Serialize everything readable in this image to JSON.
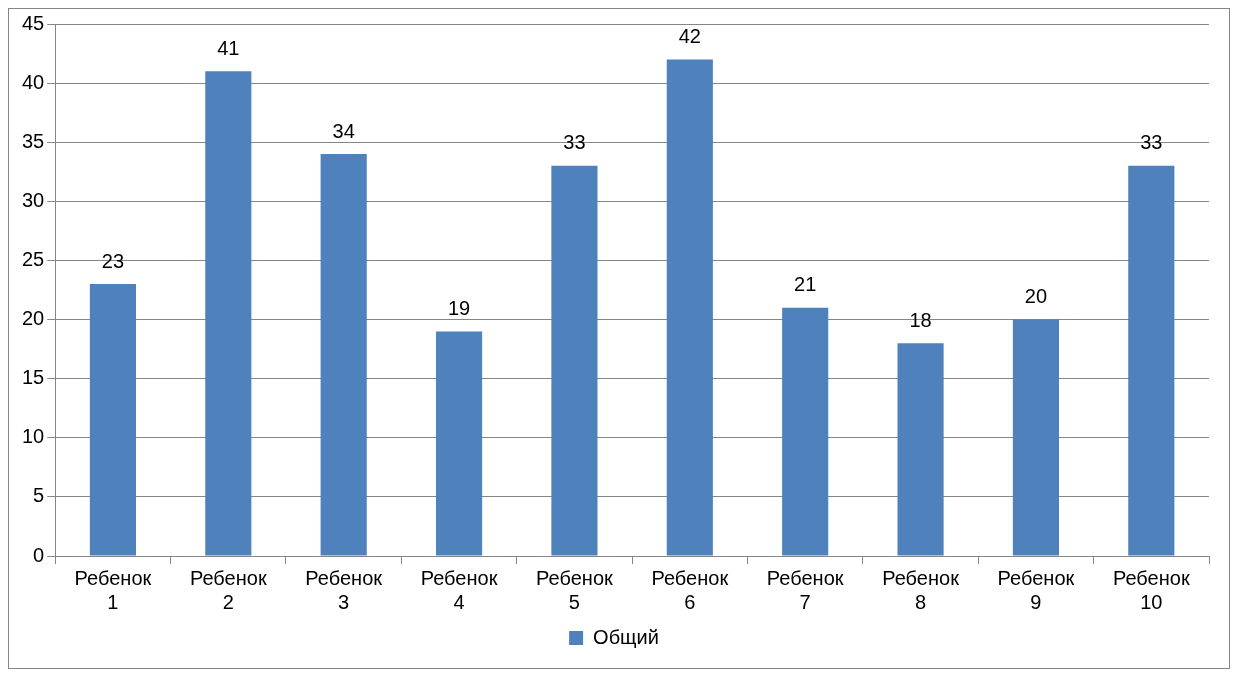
{
  "chart_data": {
    "type": "bar",
    "categories": [
      "Ребенок 1",
      "Ребенок 2",
      "Ребенок 3",
      "Ребенок 4",
      "Ребенок 5",
      "Ребенок 6",
      "Ребенок 7",
      "Ребенок 8",
      "Ребенок 9",
      "Ребенок 10"
    ],
    "series": [
      {
        "name": "Общий",
        "color": "#4f81bd",
        "values": [
          23,
          41,
          34,
          19,
          33,
          42,
          21,
          18,
          20,
          33
        ]
      }
    ],
    "ylim": [
      0,
      45
    ],
    "yticks": [
      0,
      5,
      10,
      15,
      20,
      25,
      30,
      35,
      40,
      45
    ],
    "grid": "y",
    "legend": "bottom",
    "data_labels": true
  }
}
